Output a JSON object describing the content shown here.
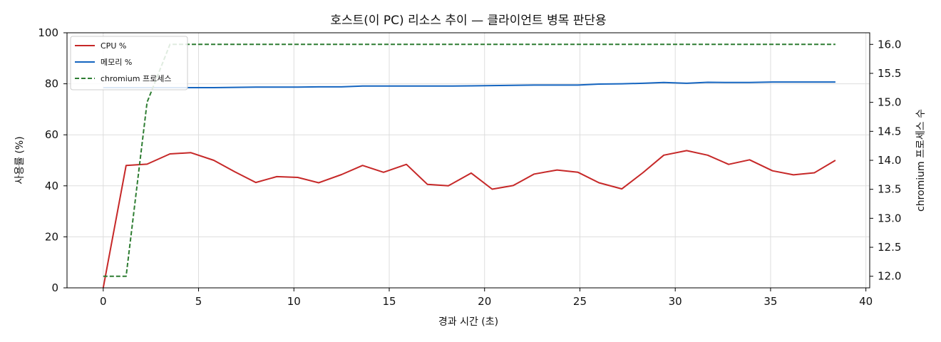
{
  "chart_data": {
    "type": "line",
    "title": "호스트(이 PC) 리소스 추이 — 클라이언트 병목 판단용",
    "xlabel": "경과 시간 (초)",
    "ylabel": "사용률 (%)",
    "y2label": "chromium 프로세스 수",
    "xlim": [
      -1.9,
      40.2
    ],
    "ylim": [
      0,
      100
    ],
    "y2lim": [
      11.8,
      16.2
    ],
    "xticks": [
      "0",
      "5",
      "10",
      "15",
      "20",
      "25",
      "30",
      "35",
      "40"
    ],
    "yticks": [
      "0",
      "20",
      "40",
      "60",
      "80",
      "100"
    ],
    "y2ticks": [
      "12.0",
      "12.5",
      "13.0",
      "13.5",
      "14.0",
      "14.5",
      "15.0",
      "15.5",
      "16.0"
    ],
    "grid": true,
    "legend_position": "top-left",
    "series": [
      {
        "name": "CPU %",
        "color": "#c62828",
        "style": "solid",
        "axis": "left",
        "x": [
          0.0,
          1.2,
          2.3,
          3.5,
          4.6,
          5.8,
          6.9,
          8.0,
          9.1,
          10.2,
          11.3,
          12.5,
          13.6,
          14.7,
          15.9,
          17.0,
          18.1,
          19.3,
          20.4,
          21.5,
          22.6,
          23.8,
          24.9,
          26.0,
          27.2,
          28.3,
          29.4,
          30.6,
          31.7,
          32.8,
          33.9,
          35.1,
          36.2,
          37.3,
          38.4
        ],
        "values": [
          0.0,
          48.0,
          48.5,
          52.5,
          53.0,
          50.0,
          45.5,
          41.3,
          43.6,
          43.3,
          41.2,
          44.4,
          48.0,
          45.3,
          48.4,
          40.6,
          40.0,
          45.0,
          38.7,
          40.1,
          44.6,
          46.2,
          45.3,
          41.2,
          38.8,
          45.1,
          52.0,
          53.8,
          52.0,
          48.4,
          50.2,
          45.9,
          44.3,
          45.1,
          50.0
        ]
      },
      {
        "name": "메모리 %",
        "color": "#1565c0",
        "style": "solid",
        "axis": "left",
        "x": [
          0.0,
          1.2,
          2.3,
          3.5,
          4.6,
          5.8,
          6.9,
          8.0,
          9.1,
          10.2,
          11.3,
          12.5,
          13.6,
          14.7,
          15.9,
          17.0,
          18.1,
          19.3,
          20.4,
          21.5,
          22.6,
          23.8,
          24.9,
          26.0,
          27.2,
          28.3,
          29.4,
          30.6,
          31.7,
          32.8,
          33.9,
          35.1,
          36.2,
          37.3,
          38.4
        ],
        "values": [
          78.5,
          78.5,
          78.5,
          78.5,
          78.5,
          78.5,
          78.6,
          78.7,
          78.7,
          78.7,
          78.8,
          78.8,
          79.1,
          79.1,
          79.1,
          79.1,
          79.1,
          79.2,
          79.3,
          79.4,
          79.5,
          79.5,
          79.5,
          79.9,
          80.0,
          80.2,
          80.5,
          80.2,
          80.6,
          80.5,
          80.5,
          80.7,
          80.7,
          80.7,
          80.7
        ]
      },
      {
        "name": "chromium 프로세스",
        "color": "#2e7d32",
        "style": "dashed",
        "axis": "right",
        "x": [
          0.0,
          1.2,
          2.3,
          3.5,
          4.6,
          5.8,
          6.9,
          8.0,
          9.1,
          10.2,
          11.3,
          12.5,
          13.6,
          14.7,
          15.9,
          17.0,
          18.1,
          19.3,
          20.4,
          21.5,
          22.6,
          23.8,
          24.9,
          26.0,
          27.2,
          28.3,
          29.4,
          30.6,
          31.7,
          32.8,
          33.9,
          35.1,
          36.2,
          37.3,
          38.4
        ],
        "values": [
          12,
          12,
          15,
          16,
          16,
          16,
          16,
          16,
          16,
          16,
          16,
          16,
          16,
          16,
          16,
          16,
          16,
          16,
          16,
          16,
          16,
          16,
          16,
          16,
          16,
          16,
          16,
          16,
          16,
          16,
          16,
          16,
          16,
          16,
          16
        ]
      }
    ]
  }
}
